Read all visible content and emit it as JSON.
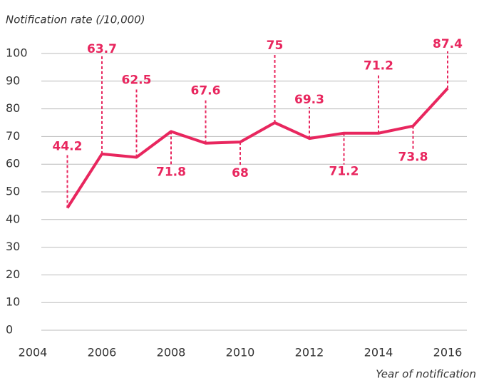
{
  "chart_data": {
    "type": "line",
    "y_axis_label": "Notification rate (/10,000)",
    "x_axis_label": "Year of notification",
    "x": [
      2005,
      2006,
      2007,
      2008,
      2009,
      2010,
      2011,
      2012,
      2013,
      2014,
      2015,
      2016
    ],
    "series": [
      {
        "name": "Notification rate",
        "color": "#e8265e",
        "values": [
          44.2,
          63.7,
          62.5,
          71.8,
          67.6,
          68,
          75,
          69.3,
          71.2,
          71.2,
          73.8,
          87.4
        ]
      }
    ],
    "xlim": [
      2004,
      2016.5
    ],
    "xticks": [
      2004,
      2006,
      2008,
      2010,
      2012,
      2014,
      2016
    ],
    "ylim": [
      0,
      100
    ],
    "yticks": [
      0,
      10,
      20,
      30,
      40,
      50,
      60,
      70,
      80,
      90,
      100
    ],
    "grid": true
  }
}
